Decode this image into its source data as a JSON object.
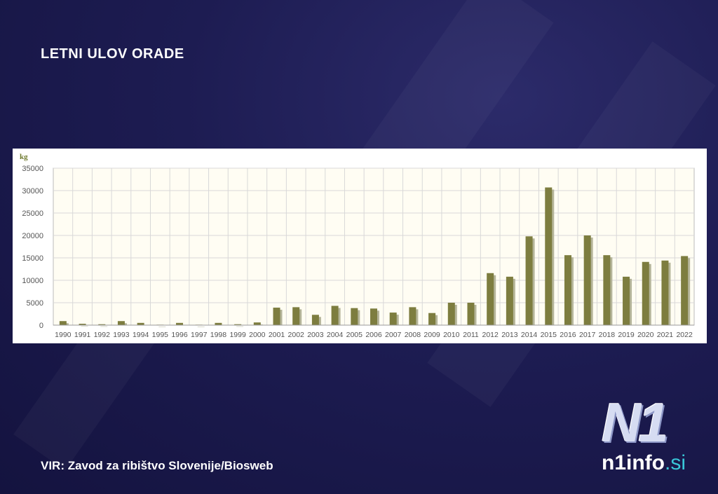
{
  "title": "LETNI ULOV ORADE",
  "source": "VIR: Zavod za ribištvo Slovenije/Biosweb",
  "logo": {
    "mark": "N1",
    "name": "n1info",
    "domain": ".si"
  },
  "colors": {
    "bar": "#7d7d3f",
    "bar_shadow": "#b5b59a",
    "plot_bg": "#fffdf3",
    "grid": "#d8d8d8",
    "unit": "#6e7a2e",
    "tick": "#555555",
    "logo_accent": "#39c7d8"
  },
  "chart_data": {
    "type": "bar",
    "title": "",
    "xlabel": "",
    "ylabel": "kg",
    "ylim": [
      0,
      35000
    ],
    "yticks": [
      0,
      5000,
      10000,
      15000,
      20000,
      25000,
      30000,
      35000
    ],
    "grid": true,
    "legend": "none",
    "categories": [
      "1990",
      "1991",
      "1992",
      "1993",
      "1994",
      "1995",
      "1996",
      "1997",
      "1998",
      "1999",
      "2000",
      "2001",
      "2002",
      "2003",
      "2004",
      "2005",
      "2006",
      "2007",
      "2008",
      "2009",
      "2010",
      "2011",
      "2012",
      "2013",
      "2014",
      "2015",
      "2016",
      "2017",
      "2018",
      "2019",
      "2020",
      "2021",
      "2022"
    ],
    "values": [
      900,
      300,
      200,
      900,
      500,
      100,
      500,
      100,
      500,
      200,
      600,
      3900,
      4000,
      2300,
      4300,
      3800,
      3700,
      2800,
      4000,
      2700,
      5000,
      5000,
      11600,
      10800,
      19800,
      30700,
      15600,
      20000,
      15600,
      10800,
      14100,
      14400,
      15400
    ]
  }
}
